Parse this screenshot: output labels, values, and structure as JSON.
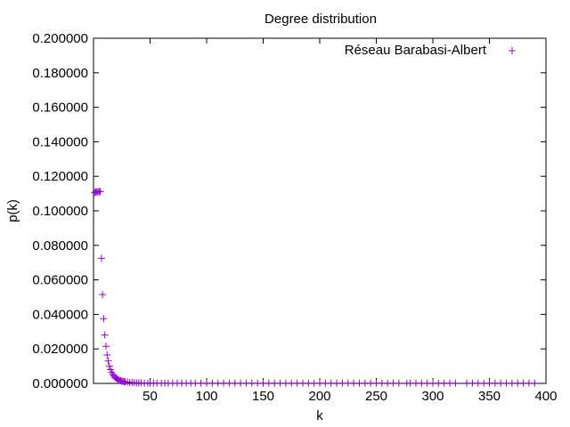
{
  "chart_data": {
    "type": "scatter",
    "title": "Degree distribution",
    "xlabel": "k",
    "ylabel": "p(k)",
    "xlim": [
      0,
      400
    ],
    "ylim": [
      0,
      0.2
    ],
    "xticks": [
      50,
      100,
      150,
      200,
      250,
      300,
      350,
      400
    ],
    "xtick_labels": [
      "50",
      "100",
      "150",
      "200",
      "250",
      "300",
      "350",
      "400"
    ],
    "yticks": [
      0,
      0.02,
      0.04,
      0.06,
      0.08,
      0.1,
      0.12,
      0.14,
      0.16,
      0.18,
      0.2
    ],
    "ytick_labels": [
      "0.000000",
      "0.020000",
      "0.040000",
      "0.060000",
      "0.080000",
      "0.100000",
      "0.120000",
      "0.140000",
      "0.160000",
      "0.180000",
      "0.200000"
    ],
    "grid": false,
    "legend_position": "top-right",
    "marker": "+",
    "series": [
      {
        "name": "Réseau Barabasi-Albert",
        "color": "#9400d3",
        "x": [
          1,
          2,
          3,
          4,
          5,
          6,
          7,
          8,
          9,
          10,
          11,
          12,
          13,
          14,
          15,
          16,
          17,
          18,
          19,
          20,
          21,
          22,
          23,
          24,
          25,
          26,
          27,
          28,
          30,
          32,
          34,
          36,
          38,
          40,
          42,
          45,
          48,
          50,
          53,
          56,
          60,
          63,
          66,
          70,
          74,
          78,
          82,
          86,
          90,
          95,
          100,
          105,
          110,
          115,
          120,
          125,
          130,
          135,
          140,
          145,
          150,
          155,
          160,
          165,
          170,
          175,
          180,
          185,
          190,
          195,
          200,
          205,
          210,
          215,
          220,
          225,
          230,
          235,
          240,
          245,
          250,
          255,
          260,
          265,
          270,
          277,
          280,
          285,
          290,
          295,
          300,
          305,
          310,
          315,
          320,
          330,
          335,
          340,
          345,
          350,
          355,
          360,
          365,
          370,
          375,
          380,
          385,
          390
        ],
        "y": [
          0.1105,
          0.111,
          0.1108,
          0.1112,
          0.111,
          0.1112,
          0.0725,
          0.0515,
          0.0375,
          0.028,
          0.0215,
          0.0165,
          0.013,
          0.01,
          0.008,
          0.0065,
          0.0052,
          0.0043,
          0.0035,
          0.003,
          0.0025,
          0.0021,
          0.0018,
          0.0015,
          0.0013,
          0.0012,
          0.001,
          0.0009,
          0.0008,
          0.0006,
          0.0005,
          0.0004,
          0.0004,
          0.0003,
          0.0003,
          0.0002,
          0.0002,
          0.0002,
          0.0002,
          0.0001,
          0.0001,
          0.0001,
          0.0001,
          0.0001,
          0.0001,
          0.0001,
          0.0001,
          0.0001,
          0.0001,
          0.0001,
          0.0001,
          0.0001,
          0.0001,
          0.0001,
          0.0001,
          0.0001,
          0.0001,
          0.0001,
          0.0001,
          0.0001,
          0.0001,
          0.0001,
          0.0001,
          0.0001,
          0.0001,
          0.0001,
          0.0001,
          0.0001,
          0.0001,
          0.0001,
          0.0001,
          0.0001,
          0.0001,
          0.0001,
          0.0001,
          0.0001,
          0.0001,
          0.0001,
          0.0001,
          0.0001,
          0.0001,
          0.0001,
          0.0001,
          0.0001,
          0.0001,
          0.0001,
          0.0001,
          0.0001,
          0.0001,
          0.0001,
          0.0001,
          0.0001,
          0.0001,
          0.0001,
          0.0001,
          0.0001,
          0.0001,
          0.0001,
          0.0001,
          0.0001,
          0.0001,
          0.0001,
          0.0001,
          0.0001,
          0.0001,
          0.0001,
          0.0001,
          0.0001
        ]
      }
    ]
  }
}
